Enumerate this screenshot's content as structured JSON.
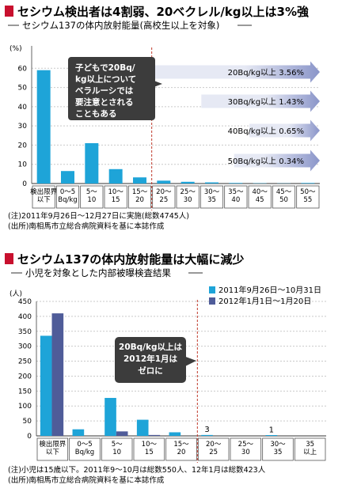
{
  "chart_data": [
    {
      "type": "bar",
      "title": "セシウム検出者は4割弱、20ベクレル/kg以上は3%強",
      "subtitle": "セシウム137の体内放射能量(高校生以上を対象)",
      "ylabel": "(%)",
      "ylim": [
        0,
        70
      ],
      "yticks": [
        "0",
        "10",
        "20",
        "30",
        "40",
        "50",
        "60"
      ],
      "categories": [
        "検出限界\n以下",
        "0〜5\nBq/kg",
        "5〜\n10",
        "10〜\n15",
        "15〜\n20",
        "20〜\n25",
        "25〜\n30",
        "30〜\n35",
        "35〜\n40",
        "40〜\n45",
        "45〜\n50",
        "50〜\n55"
      ],
      "values": [
        59,
        6.5,
        21,
        7.5,
        3.2,
        1.5,
        0.9,
        0.6,
        0.3,
        0.15,
        0.1,
        0.3
      ],
      "callout": "子どもで20Bq/\nkg以上について\nベラルーシでは\n要注意とされる\nこともある",
      "arrows": [
        {
          "label": "20Bq/kg以上 3.56%"
        },
        {
          "label": "30Bq/kg以上 1.43%"
        },
        {
          "label": "40Bq/kg以上 0.65%"
        },
        {
          "label": "50Bq/kg以上 0.34%"
        }
      ],
      "notes": [
        "(注)2011年9月26日〜12月27日に実施(総数4745人)",
        "(出所)南相馬市立総合病院資料を基に本誌作成"
      ],
      "colors": {
        "bar": "#1ea4d8",
        "arrow": "#8a95c9",
        "arrow_light": "#e6e9f4",
        "callout": "#3c3c3c",
        "title_square": "#c8102e",
        "dashed": "#c0392b"
      }
    },
    {
      "type": "bar",
      "title": "セシウム137の体内放射能量は大幅に減少",
      "subtitle": "小児を対象とした内部被曝検査結果",
      "ylabel": "(人)",
      "ylim": [
        0,
        450
      ],
      "yticks": [
        "0",
        "50",
        "100",
        "150",
        "200",
        "250",
        "300",
        "350",
        "400",
        "450"
      ],
      "categories": [
        "検出限界\n以下",
        "0〜5\nBq/kg",
        "5〜\n10",
        "10〜\n15",
        "15〜\n20",
        "20〜\n25",
        "25〜\n30",
        "30〜\n35",
        "35\n以上"
      ],
      "series": [
        {
          "name": "2011年9月26日〜10月31日",
          "values": [
            335,
            22,
            127,
            54,
            12,
            3,
            0,
            1,
            0
          ]
        },
        {
          "name": "2012年1月1日〜1月20日",
          "values": [
            410,
            0,
            15,
            3,
            0,
            0,
            0,
            0,
            0
          ]
        }
      ],
      "value_labels": [
        "3",
        "1"
      ],
      "callout": "20Bq/kg以上は\n2012年1月は\nゼロに",
      "notes": [
        "(注)小児は15歳以下。2011年9〜10月は総数550人、12年1月は総数423人",
        "(出所)南相馬市立総合病院資料を基に本誌作成"
      ],
      "colors": {
        "series1": "#1ea4d8",
        "series2": "#4f5c99",
        "callout": "#3c3c3c",
        "title_square": "#c8102e",
        "dashed": "#c0392b"
      }
    }
  ]
}
